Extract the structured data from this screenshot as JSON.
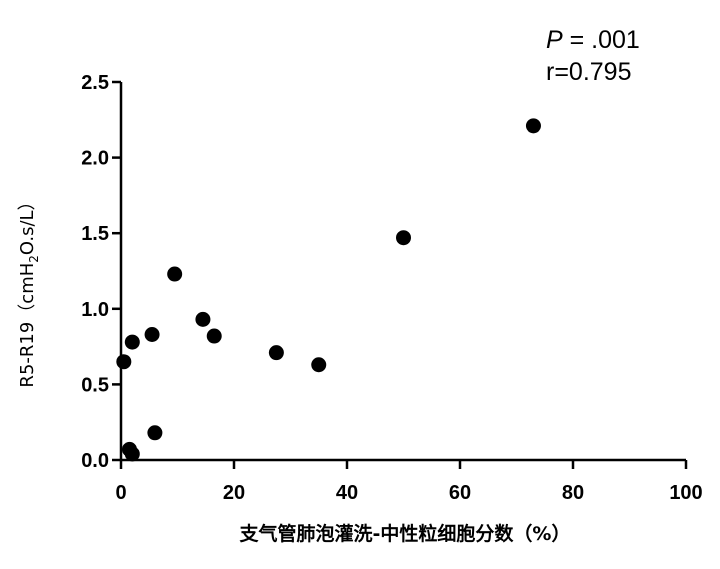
{
  "chart_data": {
    "type": "scatter",
    "title": "",
    "xlabel": "支气管肺泡灌洗-中性粒细胞分数（%）",
    "ylabel_prefix": "R5-R19（cmH",
    "ylabel_sub": "2",
    "ylabel_suffix": "O.s/L）",
    "xlim": [
      0,
      100
    ],
    "ylim": [
      0,
      2.5
    ],
    "x_ticks": [
      0,
      20,
      40,
      60,
      80,
      100
    ],
    "x_tick_labels": [
      "0",
      "20",
      "40",
      "60",
      "80",
      "100"
    ],
    "y_ticks": [
      0,
      0.5,
      1.0,
      1.5,
      2.0,
      2.5
    ],
    "y_tick_labels": [
      "0.0",
      "0.5",
      "1.0",
      "1.5",
      "2.0",
      "2.5"
    ],
    "grid": false,
    "marker_color": "#000000",
    "annotation": {
      "p_label": "P",
      "p_value": " = .001",
      "r_text": "r=0.795"
    },
    "points": [
      {
        "x": 0.5,
        "y": 0.65
      },
      {
        "x": 1.5,
        "y": 0.07
      },
      {
        "x": 2.0,
        "y": 0.04
      },
      {
        "x": 2.0,
        "y": 0.78
      },
      {
        "x": 5.5,
        "y": 0.83
      },
      {
        "x": 6.0,
        "y": 0.18
      },
      {
        "x": 9.5,
        "y": 1.23
      },
      {
        "x": 14.5,
        "y": 0.93
      },
      {
        "x": 16.5,
        "y": 0.82
      },
      {
        "x": 27.5,
        "y": 0.71
      },
      {
        "x": 35.0,
        "y": 0.63
      },
      {
        "x": 50.0,
        "y": 1.47
      },
      {
        "x": 73.0,
        "y": 2.21
      }
    ]
  }
}
